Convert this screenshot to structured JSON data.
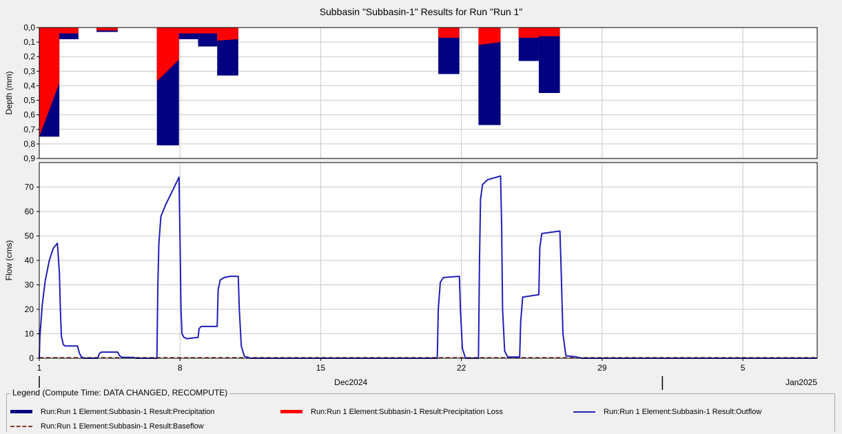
{
  "title": "Subbasin \"Subbasin-1\" Results for Run \"Run 1\"",
  "colors": {
    "precipitation": "#000080",
    "precipitation_loss": "#ff0000",
    "outflow": "#1f1fb8",
    "baseflow": "#8b3a2a",
    "grid": "#c8c8c8",
    "background": "#f0f0f0"
  },
  "x_axis": {
    "ticks": [
      "1",
      "8",
      "15",
      "22",
      "29",
      "5"
    ],
    "month_labels": [
      "Dec2024",
      "Jan2025"
    ]
  },
  "legend": {
    "title": "Legend (Compute Time: DATA CHANGED, RECOMPUTE)",
    "items": [
      {
        "label": "Run:Run 1 Element:Subbasin-1 Result:Precipitation",
        "symbol": "thick-line",
        "color": "#000080"
      },
      {
        "label": "Run:Run 1 Element:Subbasin-1 Result:Precipitation Loss",
        "symbol": "thick-line",
        "color": "#ff0000"
      },
      {
        "label": "Run:Run 1 Element:Subbasin-1 Result:Outflow",
        "symbol": "thin-line",
        "color": "#1f1fb8"
      },
      {
        "label": "Run:Run 1 Element:Subbasin-1 Result:Baseflow",
        "symbol": "dashed-line",
        "color": "#8b3a2a"
      }
    ]
  },
  "chart_data": [
    {
      "type": "bar",
      "subtype": "inverted-stacked-step",
      "ylabel": "Depth (mm)",
      "ylim": [
        0.9,
        0.0
      ],
      "y_ticks": [
        "0,0",
        "0,1",
        "0,2",
        "0,3",
        "0,4",
        "0,5",
        "0,6",
        "0,7",
        "0,8",
        "0,9"
      ],
      "x_unit": "day of Dec 2024",
      "xlim": [
        1,
        39.7
      ],
      "grid": true,
      "bars": [
        {
          "x_start": 1.0,
          "x_end": 2.0,
          "loss_start": 0.75,
          "loss_end": 0.38,
          "total": 0.75
        },
        {
          "x_start": 2.0,
          "x_end": 2.95,
          "loss_start": 0.04,
          "loss_end": 0.04,
          "total": 0.08
        },
        {
          "x_start": 3.85,
          "x_end": 4.9,
          "loss_start": 0.02,
          "loss_end": 0.02,
          "total": 0.03
        },
        {
          "x_start": 6.85,
          "x_end": 7.95,
          "loss_start": 0.37,
          "loss_end": 0.22,
          "total": 0.81
        },
        {
          "x_start": 7.95,
          "x_end": 8.9,
          "loss_start": 0.04,
          "loss_end": 0.04,
          "total": 0.08
        },
        {
          "x_start": 8.9,
          "x_end": 9.85,
          "loss_start": 0.04,
          "loss_end": 0.04,
          "total": 0.13
        },
        {
          "x_start": 9.85,
          "x_end": 10.9,
          "loss_start": 0.09,
          "loss_end": 0.08,
          "total": 0.33
        },
        {
          "x_start": 20.85,
          "x_end": 21.9,
          "loss_start": 0.07,
          "loss_end": 0.07,
          "total": 0.32
        },
        {
          "x_start": 22.85,
          "x_end": 23.95,
          "loss_start": 0.12,
          "loss_end": 0.1,
          "total": 0.67
        },
        {
          "x_start": 24.85,
          "x_end": 25.85,
          "loss_start": 0.07,
          "loss_end": 0.07,
          "total": 0.23
        },
        {
          "x_start": 25.85,
          "x_end": 26.9,
          "loss_start": 0.06,
          "loss_end": 0.06,
          "total": 0.45
        }
      ],
      "series": [
        {
          "name": "Precipitation"
        },
        {
          "name": "Precipitation Loss"
        }
      ]
    },
    {
      "type": "line",
      "ylabel": "Flow (cms)",
      "ylim": [
        0,
        80
      ],
      "y_ticks": [
        "0",
        "10",
        "20",
        "30",
        "40",
        "50",
        "60",
        "70"
      ],
      "x_unit": "day of Dec 2024",
      "xlim": [
        1,
        39.7
      ],
      "grid": true,
      "series": [
        {
          "name": "Outflow",
          "x": [
            1.0,
            1.03,
            1.15,
            1.3,
            1.5,
            1.7,
            1.9,
            2.0,
            2.05,
            2.1,
            2.2,
            2.3,
            2.9,
            3.0,
            3.1,
            3.2,
            3.9,
            4.0,
            4.1,
            4.9,
            5.0,
            5.1,
            5.7,
            5.8,
            6.0,
            6.85,
            6.9,
            6.95,
            7.05,
            7.3,
            7.6,
            7.95,
            8.0,
            8.05,
            8.1,
            8.2,
            8.35,
            8.9,
            8.95,
            9.05,
            9.85,
            9.9,
            10.0,
            10.2,
            10.5,
            10.9,
            10.95,
            11.05,
            11.2,
            11.5,
            20.8,
            20.85,
            20.95,
            21.1,
            21.6,
            21.9,
            21.95,
            22.05,
            22.2,
            22.85,
            22.9,
            22.95,
            23.05,
            23.3,
            23.95,
            24.0,
            24.05,
            24.15,
            24.3,
            24.9,
            24.95,
            25.05,
            25.85,
            25.9,
            26.0,
            26.9,
            26.95,
            27.05,
            27.2,
            27.7,
            27.8,
            28.0,
            39.7
          ],
          "y": [
            0,
            9,
            22,
            32,
            40,
            45,
            47,
            35,
            20,
            9,
            5.5,
            5,
            5,
            2,
            0.5,
            0,
            0,
            2,
            2.5,
            2.5,
            1,
            0.4,
            0.3,
            0,
            0,
            0,
            30,
            47,
            58,
            63,
            68,
            74,
            50,
            20,
            10,
            8.5,
            8,
            8.5,
            12,
            13,
            13,
            28,
            32,
            33,
            33.5,
            33.5,
            20,
            5,
            0.8,
            0,
            0,
            20,
            31,
            33,
            33.3,
            33.5,
            20,
            4,
            0,
            0,
            40,
            65,
            71,
            73,
            74.5,
            55,
            20,
            3,
            0.5,
            0.5,
            15,
            25,
            26,
            45,
            51,
            52,
            40,
            10,
            1,
            0.6,
            0.3,
            0,
            0
          ]
        },
        {
          "name": "Baseflow",
          "x": [
            1.0,
            39.7
          ],
          "y": [
            0,
            0
          ]
        }
      ]
    }
  ]
}
